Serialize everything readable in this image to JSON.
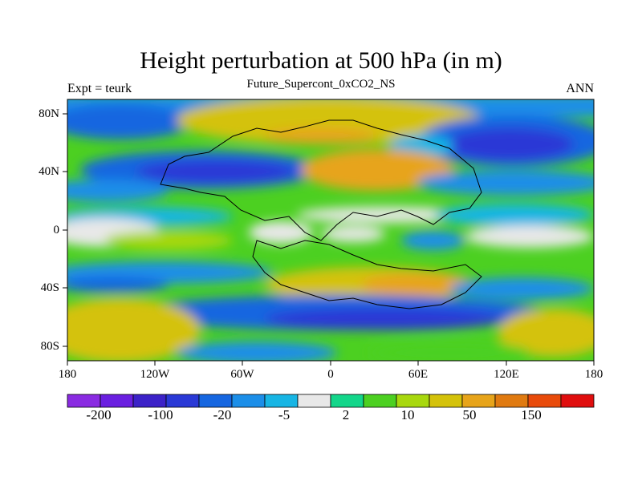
{
  "title": "Height perturbation at 500 hPa (in m)",
  "subtitle": "Future_Supercont_0xCO2_NS",
  "left_label": "Expt = teurk",
  "right_label": "ANN",
  "y_ticks": [
    "80N",
    "40N",
    "0",
    "40S",
    "80S"
  ],
  "x_ticks": [
    "180",
    "120W",
    "60W",
    "0",
    "60E",
    "120E",
    "180"
  ],
  "colorbar": {
    "colors": [
      "#8a2be2",
      "#6a1fe0",
      "#3c22c8",
      "#2a39d6",
      "#1666e0",
      "#1b8ee8",
      "#17b5e4",
      "#e8e8e8",
      "#13d68a",
      "#4cd021",
      "#a8d80e",
      "#d4c20a",
      "#e7a41a",
      "#e07a10",
      "#e84a0a",
      "#e00e0e"
    ],
    "labels": [
      "-200",
      "-100",
      "-20",
      "-5",
      "2",
      "10",
      "50",
      "150"
    ]
  },
  "map": {
    "projection": "cylindrical-equidistant",
    "lon_range": [
      -180,
      180
    ],
    "lat_range": [
      -90,
      90
    ],
    "variable": "500 hPa height perturbation (m)"
  }
}
